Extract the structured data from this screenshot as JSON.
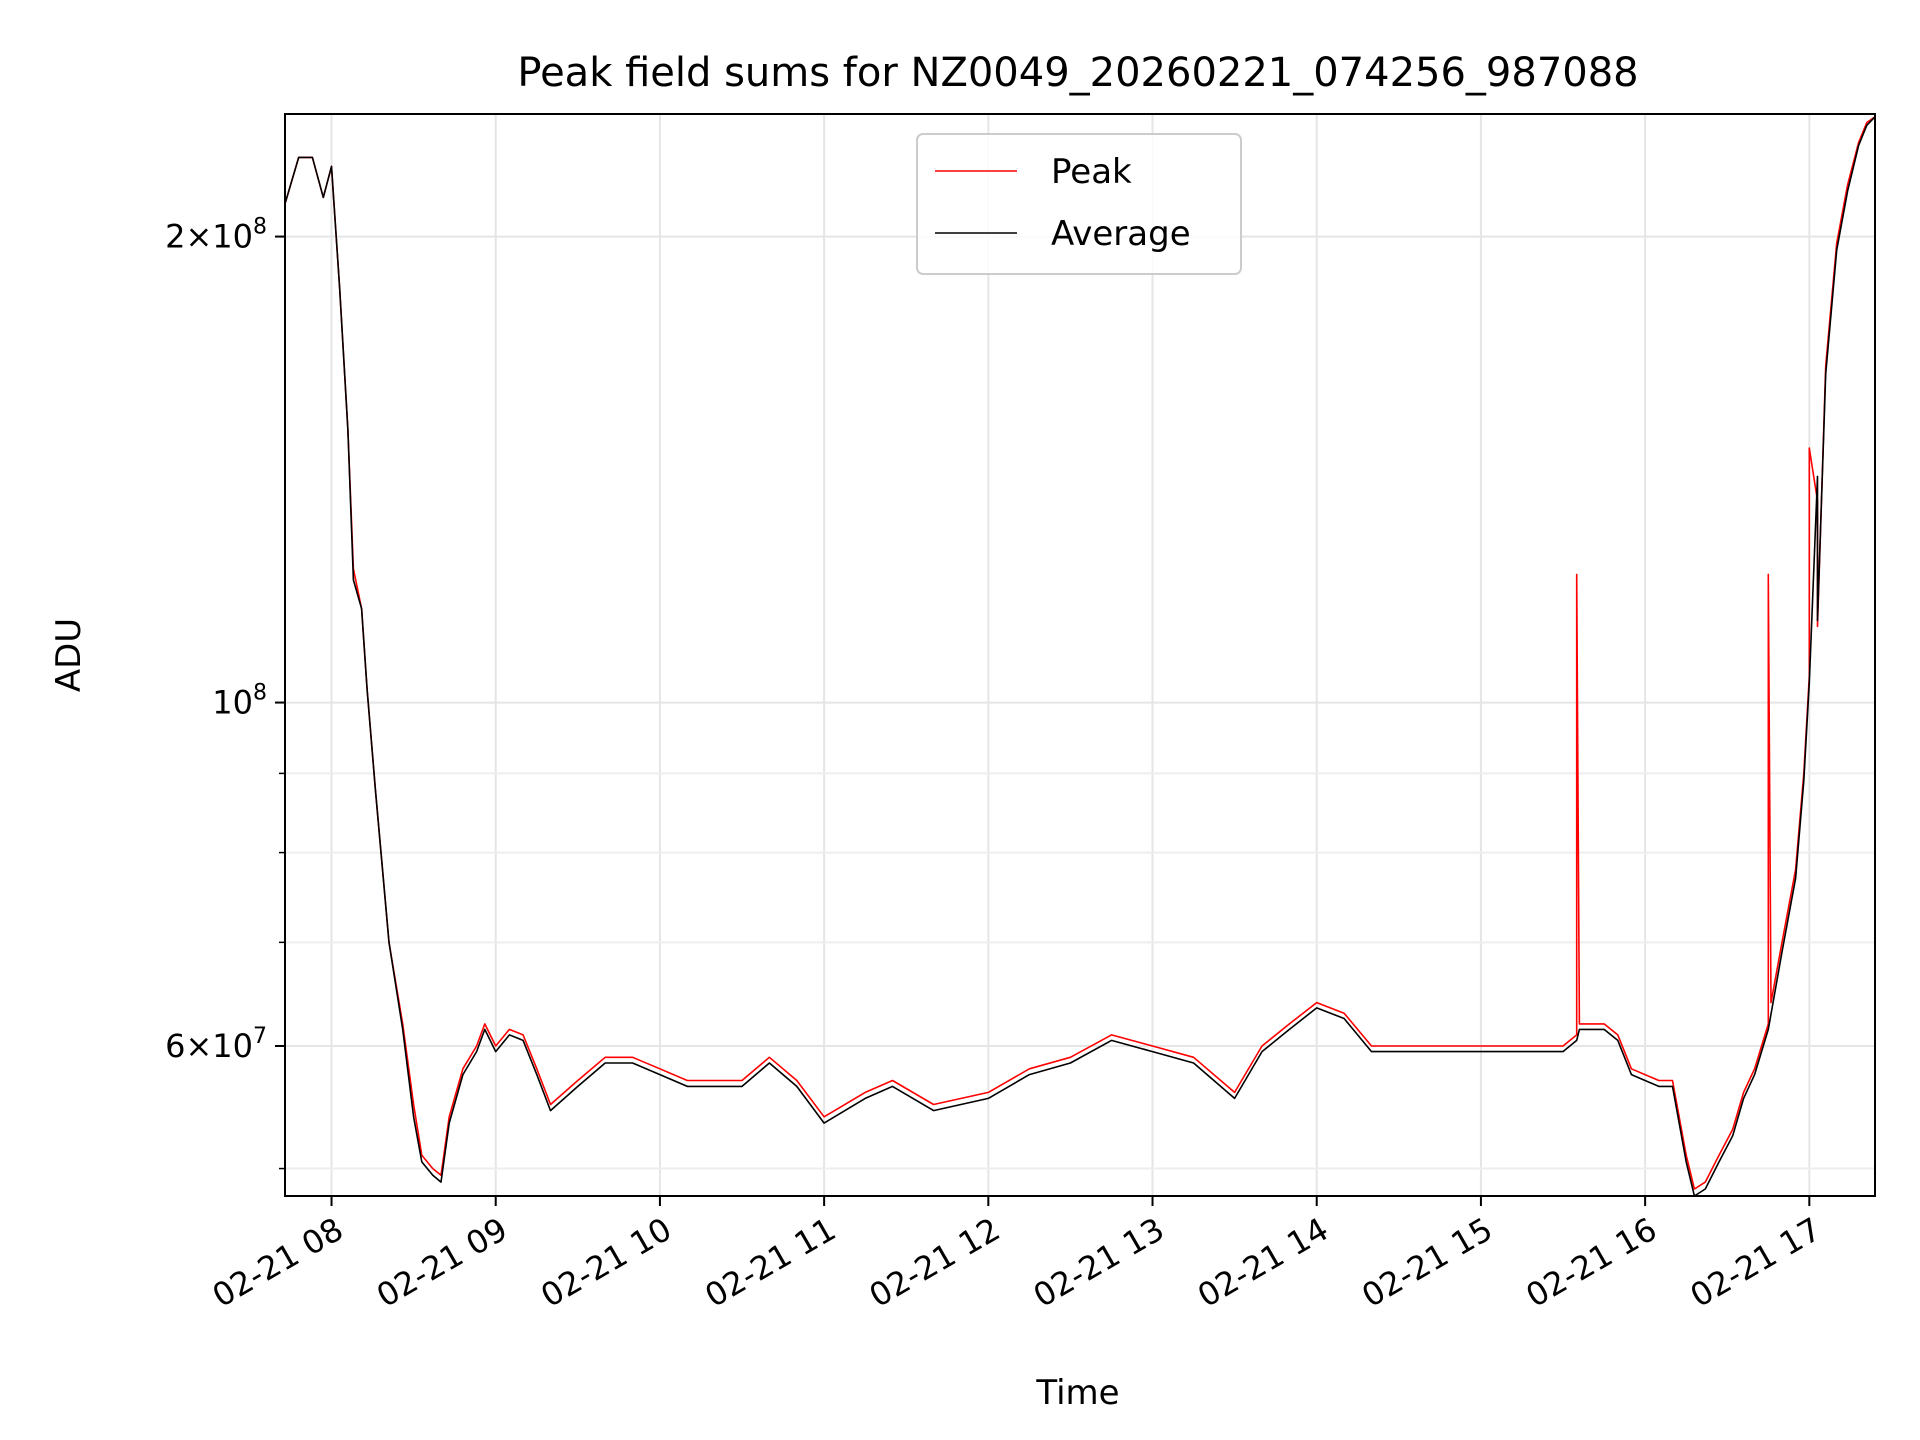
{
  "chart_data": {
    "type": "line",
    "title": "Peak field sums for NZ0049_20260221_074256_987088",
    "xlabel": "Time",
    "ylabel": "ADU",
    "y_scale": "log",
    "xlim": [
      "2026-02-21 07:43",
      "2026-02-21 17:24"
    ],
    "ylim": [
      48000000,
      240000000
    ],
    "grid": true,
    "legend_position": "top-center",
    "x_ticks": [
      "02-21 08",
      "02-21 09",
      "02-21 10",
      "02-21 11",
      "02-21 12",
      "02-21 13",
      "02-21 14",
      "02-21 15",
      "02-21 16",
      "02-21 17"
    ],
    "y_ticks": [
      {
        "value": 60000000,
        "mantissa": "6",
        "exponent": "7"
      },
      {
        "value": 100000000,
        "mantissa": "",
        "exponent": "8"
      },
      {
        "value": 200000000,
        "mantissa": "2",
        "exponent": "8"
      }
    ],
    "series": [
      {
        "name": "Peak",
        "color": "#ff0000",
        "x": [
          "2026-02-21 07:43",
          "2026-02-21 07:48",
          "2026-02-21 07:53",
          "2026-02-21 07:57",
          "2026-02-21 08:00",
          "2026-02-21 08:03",
          "2026-02-21 08:06",
          "2026-02-21 08:08",
          "2026-02-21 08:11",
          "2026-02-21 08:13",
          "2026-02-21 08:16",
          "2026-02-21 08:21",
          "2026-02-21 08:26",
          "2026-02-21 08:30",
          "2026-02-21 08:33",
          "2026-02-21 08:37",
          "2026-02-21 08:40",
          "2026-02-21 08:43",
          "2026-02-21 08:48",
          "2026-02-21 08:53",
          "2026-02-21 08:56",
          "2026-02-21 09:00",
          "2026-02-21 09:05",
          "2026-02-21 09:10",
          "2026-02-21 09:15",
          "2026-02-21 09:20",
          "2026-02-21 09:30",
          "2026-02-21 09:40",
          "2026-02-21 09:50",
          "2026-02-21 10:00",
          "2026-02-21 10:10",
          "2026-02-21 10:20",
          "2026-02-21 10:30",
          "2026-02-21 10:40",
          "2026-02-21 10:50",
          "2026-02-21 11:00",
          "2026-02-21 11:15",
          "2026-02-21 11:25",
          "2026-02-21 11:40",
          "2026-02-21 12:00",
          "2026-02-21 12:15",
          "2026-02-21 12:30",
          "2026-02-21 12:45",
          "2026-02-21 13:00",
          "2026-02-21 13:15",
          "2026-02-21 13:30",
          "2026-02-21 13:40",
          "2026-02-21 13:50",
          "2026-02-21 14:00",
          "2026-02-21 14:10",
          "2026-02-21 14:20",
          "2026-02-21 14:30",
          "2026-02-21 14:45",
          "2026-02-21 15:00",
          "2026-02-21 15:15",
          "2026-02-21 15:30",
          "2026-02-21 15:35",
          "2026-02-21 15:35",
          "2026-02-21 15:36",
          "2026-02-21 15:45",
          "2026-02-21 15:50",
          "2026-02-21 15:55",
          "2026-02-21 16:05",
          "2026-02-21 16:10",
          "2026-02-21 16:15",
          "2026-02-21 16:18",
          "2026-02-21 16:22",
          "2026-02-21 16:27",
          "2026-02-21 16:32",
          "2026-02-21 16:36",
          "2026-02-21 16:40",
          "2026-02-21 16:45",
          "2026-02-21 16:45",
          "2026-02-21 16:46",
          "2026-02-21 16:50",
          "2026-02-21 16:55",
          "2026-02-21 16:58",
          "2026-02-21 17:00",
          "2026-02-21 17:00",
          "2026-02-21 17:03",
          "2026-02-21 17:03",
          "2026-02-21 17:06",
          "2026-02-21 17:10",
          "2026-02-21 17:14",
          "2026-02-21 17:18",
          "2026-02-21 17:21",
          "2026-02-21 17:24"
        ],
        "y": [
          210000000,
          225000000,
          225000000,
          212000000,
          222000000,
          185000000,
          150000000,
          122000000,
          115000000,
          102000000,
          88000000,
          70000000,
          62000000,
          55000000,
          51000000,
          50000000,
          49500000,
          54000000,
          58000000,
          60000000,
          62000000,
          60000000,
          61500000,
          61000000,
          58000000,
          55000000,
          57000000,
          59000000,
          59000000,
          58000000,
          57000000,
          57000000,
          57000000,
          59000000,
          57000000,
          54000000,
          56000000,
          57000000,
          55000000,
          56000000,
          58000000,
          59000000,
          61000000,
          60000000,
          59000000,
          56000000,
          60000000,
          62000000,
          64000000,
          63000000,
          60000000,
          60000000,
          60000000,
          60000000,
          60000000,
          60000000,
          61000000,
          121000000,
          62000000,
          62000000,
          61000000,
          58000000,
          57000000,
          57000000,
          51000000,
          48500000,
          49000000,
          51000000,
          53000000,
          56000000,
          58000000,
          62000000,
          121000000,
          64000000,
          70000000,
          78000000,
          90000000,
          104000000,
          146000000,
          135000000,
          112000000,
          165000000,
          198000000,
          216000000,
          230000000,
          237000000,
          239000000
        ]
      },
      {
        "name": "Average",
        "color": "#000000",
        "x": [
          "2026-02-21 07:43",
          "2026-02-21 07:48",
          "2026-02-21 07:53",
          "2026-02-21 07:57",
          "2026-02-21 08:00",
          "2026-02-21 08:03",
          "2026-02-21 08:06",
          "2026-02-21 08:08",
          "2026-02-21 08:11",
          "2026-02-21 08:13",
          "2026-02-21 08:16",
          "2026-02-21 08:21",
          "2026-02-21 08:26",
          "2026-02-21 08:30",
          "2026-02-21 08:33",
          "2026-02-21 08:37",
          "2026-02-21 08:40",
          "2026-02-21 08:43",
          "2026-02-21 08:48",
          "2026-02-21 08:53",
          "2026-02-21 08:56",
          "2026-02-21 09:00",
          "2026-02-21 09:05",
          "2026-02-21 09:10",
          "2026-02-21 09:15",
          "2026-02-21 09:20",
          "2026-02-21 09:30",
          "2026-02-21 09:40",
          "2026-02-21 09:50",
          "2026-02-21 10:00",
          "2026-02-21 10:10",
          "2026-02-21 10:20",
          "2026-02-21 10:30",
          "2026-02-21 10:40",
          "2026-02-21 10:50",
          "2026-02-21 11:00",
          "2026-02-21 11:15",
          "2026-02-21 11:25",
          "2026-02-21 11:40",
          "2026-02-21 12:00",
          "2026-02-21 12:15",
          "2026-02-21 12:30",
          "2026-02-21 12:45",
          "2026-02-21 13:00",
          "2026-02-21 13:15",
          "2026-02-21 13:30",
          "2026-02-21 13:40",
          "2026-02-21 13:50",
          "2026-02-21 14:00",
          "2026-02-21 14:10",
          "2026-02-21 14:20",
          "2026-02-21 14:30",
          "2026-02-21 14:45",
          "2026-02-21 15:00",
          "2026-02-21 15:15",
          "2026-02-21 15:30",
          "2026-02-21 15:35",
          "2026-02-21 15:36",
          "2026-02-21 15:45",
          "2026-02-21 15:50",
          "2026-02-21 15:55",
          "2026-02-21 16:05",
          "2026-02-21 16:10",
          "2026-02-21 16:15",
          "2026-02-21 16:18",
          "2026-02-21 16:22",
          "2026-02-21 16:27",
          "2026-02-21 16:32",
          "2026-02-21 16:36",
          "2026-02-21 16:40",
          "2026-02-21 16:45",
          "2026-02-21 16:50",
          "2026-02-21 16:55",
          "2026-02-21 16:58",
          "2026-02-21 17:00",
          "2026-02-21 17:03",
          "2026-02-21 17:03",
          "2026-02-21 17:06",
          "2026-02-21 17:10",
          "2026-02-21 17:14",
          "2026-02-21 17:18",
          "2026-02-21 17:21",
          "2026-02-21 17:24"
        ],
        "y": [
          210000000,
          225000000,
          225000000,
          212000000,
          222000000,
          185000000,
          150000000,
          120000000,
          115000000,
          102000000,
          88000000,
          70000000,
          61500000,
          54000000,
          50500000,
          49500000,
          49000000,
          53500000,
          57500000,
          59500000,
          61500000,
          59500000,
          61000000,
          60500000,
          57500000,
          54500000,
          56500000,
          58500000,
          58500000,
          57500000,
          56500000,
          56500000,
          56500000,
          58500000,
          56500000,
          53500000,
          55500000,
          56500000,
          54500000,
          55500000,
          57500000,
          58500000,
          60500000,
          59500000,
          58500000,
          55500000,
          59500000,
          61500000,
          63500000,
          62500000,
          59500000,
          59500000,
          59500000,
          59500000,
          59500000,
          59500000,
          60500000,
          61500000,
          61500000,
          60500000,
          57500000,
          56500000,
          56500000,
          50500000,
          48000000,
          48500000,
          50500000,
          52500000,
          55500000,
          57500000,
          61500000,
          69000000,
          77000000,
          89000000,
          103000000,
          140000000,
          113000000,
          163000000,
          196000000,
          214000000,
          229000000,
          236000000,
          239000000
        ]
      }
    ]
  }
}
